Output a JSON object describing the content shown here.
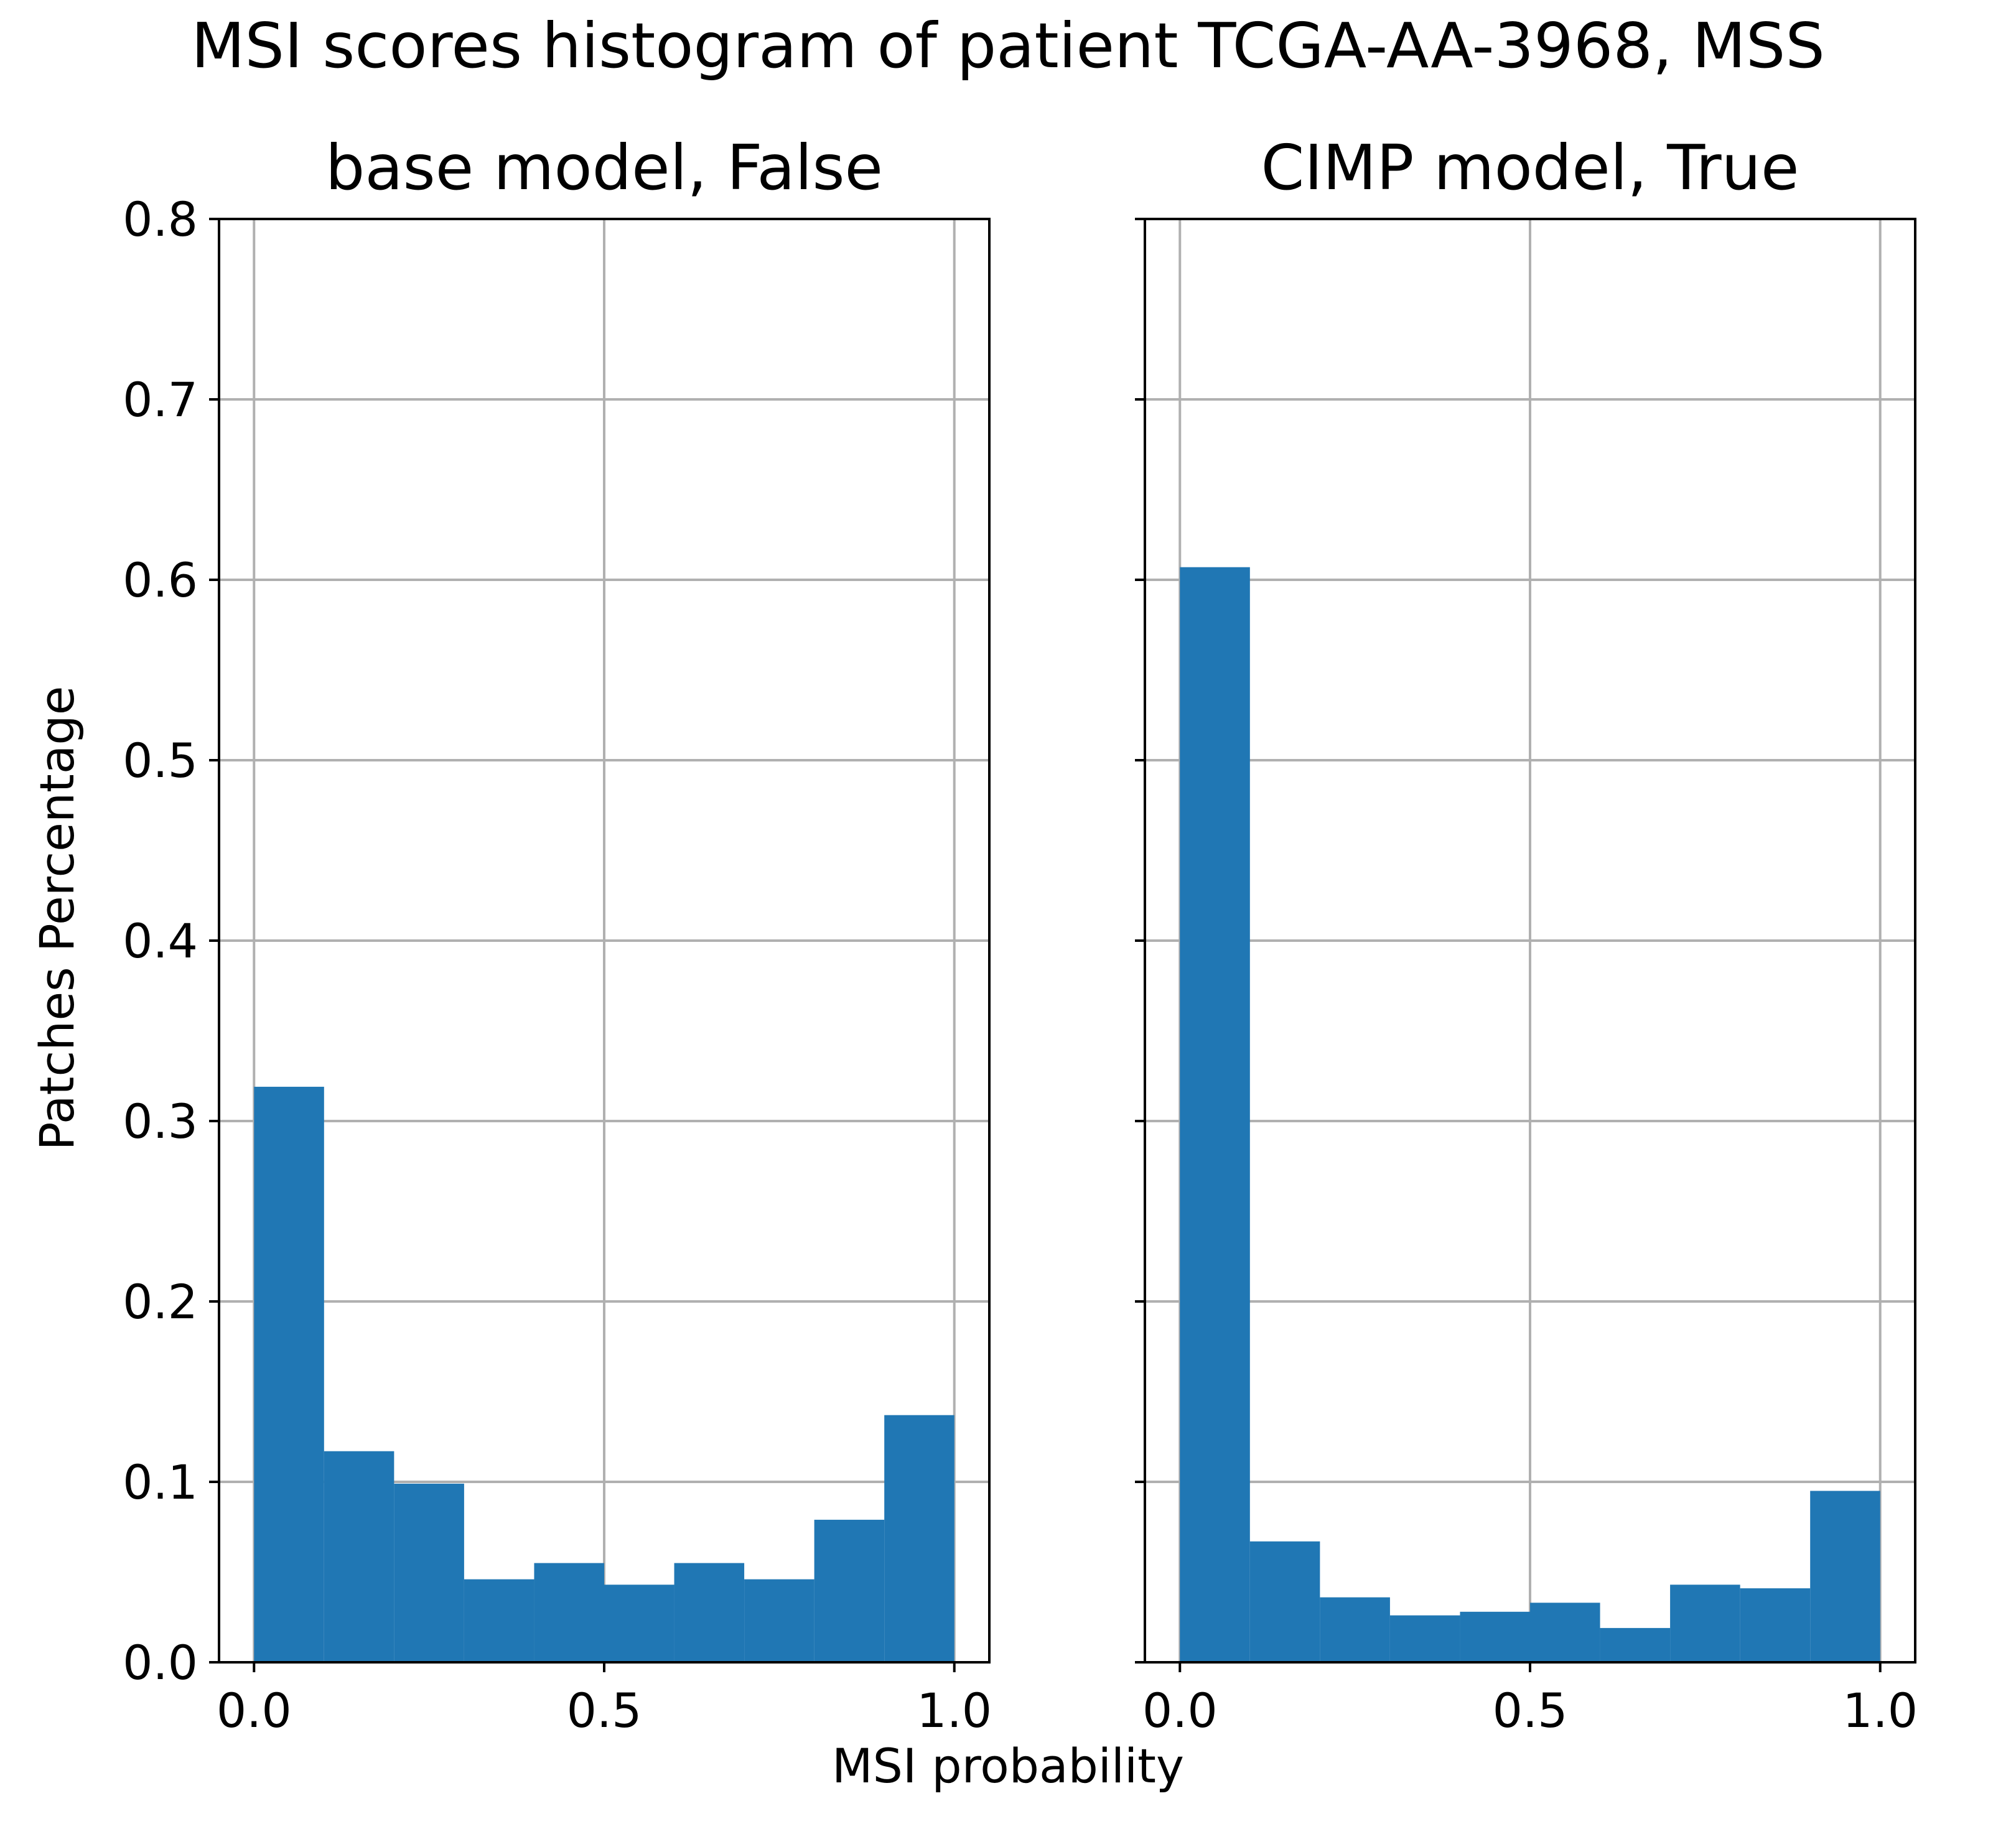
{
  "figure": {
    "title": "MSI scores histogram of patient TCGA-AA-3968, MSS",
    "xlabel": "MSI probability",
    "ylabel": "Patches Percentage"
  },
  "chart_data": [
    {
      "type": "bar",
      "title": "base model, False",
      "bin_edges": [
        0.0,
        0.1,
        0.2,
        0.3,
        0.4,
        0.5,
        0.6,
        0.7,
        0.8,
        0.9,
        1.0
      ],
      "values": [
        0.319,
        0.117,
        0.099,
        0.046,
        0.055,
        0.043,
        0.055,
        0.046,
        0.079,
        0.137
      ],
      "xlim": [
        -0.05,
        1.05
      ],
      "ylim": [
        0.0,
        0.8
      ],
      "xticks": [
        0.0,
        0.5,
        1.0
      ],
      "xtick_labels": [
        "0.0",
        "0.5",
        "1.0"
      ],
      "yticks": [
        0.0,
        0.1,
        0.2,
        0.3,
        0.4,
        0.5,
        0.6,
        0.7,
        0.8
      ],
      "ytick_labels": [
        "0.0",
        "0.1",
        "0.2",
        "0.3",
        "0.4",
        "0.5",
        "0.6",
        "0.7",
        "0.8"
      ],
      "grid": true,
      "color": "#2077b4"
    },
    {
      "type": "bar",
      "title": "CIMP model, True",
      "bin_edges": [
        0.0,
        0.1,
        0.2,
        0.3,
        0.4,
        0.5,
        0.6,
        0.7,
        0.8,
        0.9,
        1.0
      ],
      "values": [
        0.607,
        0.067,
        0.036,
        0.026,
        0.028,
        0.033,
        0.019,
        0.043,
        0.041,
        0.095
      ],
      "xlim": [
        -0.05,
        1.05
      ],
      "ylim": [
        0.0,
        0.8
      ],
      "xticks": [
        0.0,
        0.5,
        1.0
      ],
      "xtick_labels": [
        "0.0",
        "0.5",
        "1.0"
      ],
      "yticks": [
        0.0,
        0.1,
        0.2,
        0.3,
        0.4,
        0.5,
        0.6,
        0.7,
        0.8
      ],
      "ytick_labels": [],
      "grid": true,
      "color": "#2077b4"
    }
  ],
  "style": {
    "grid_color": "#b0b0b0",
    "axis_color": "#000000"
  }
}
